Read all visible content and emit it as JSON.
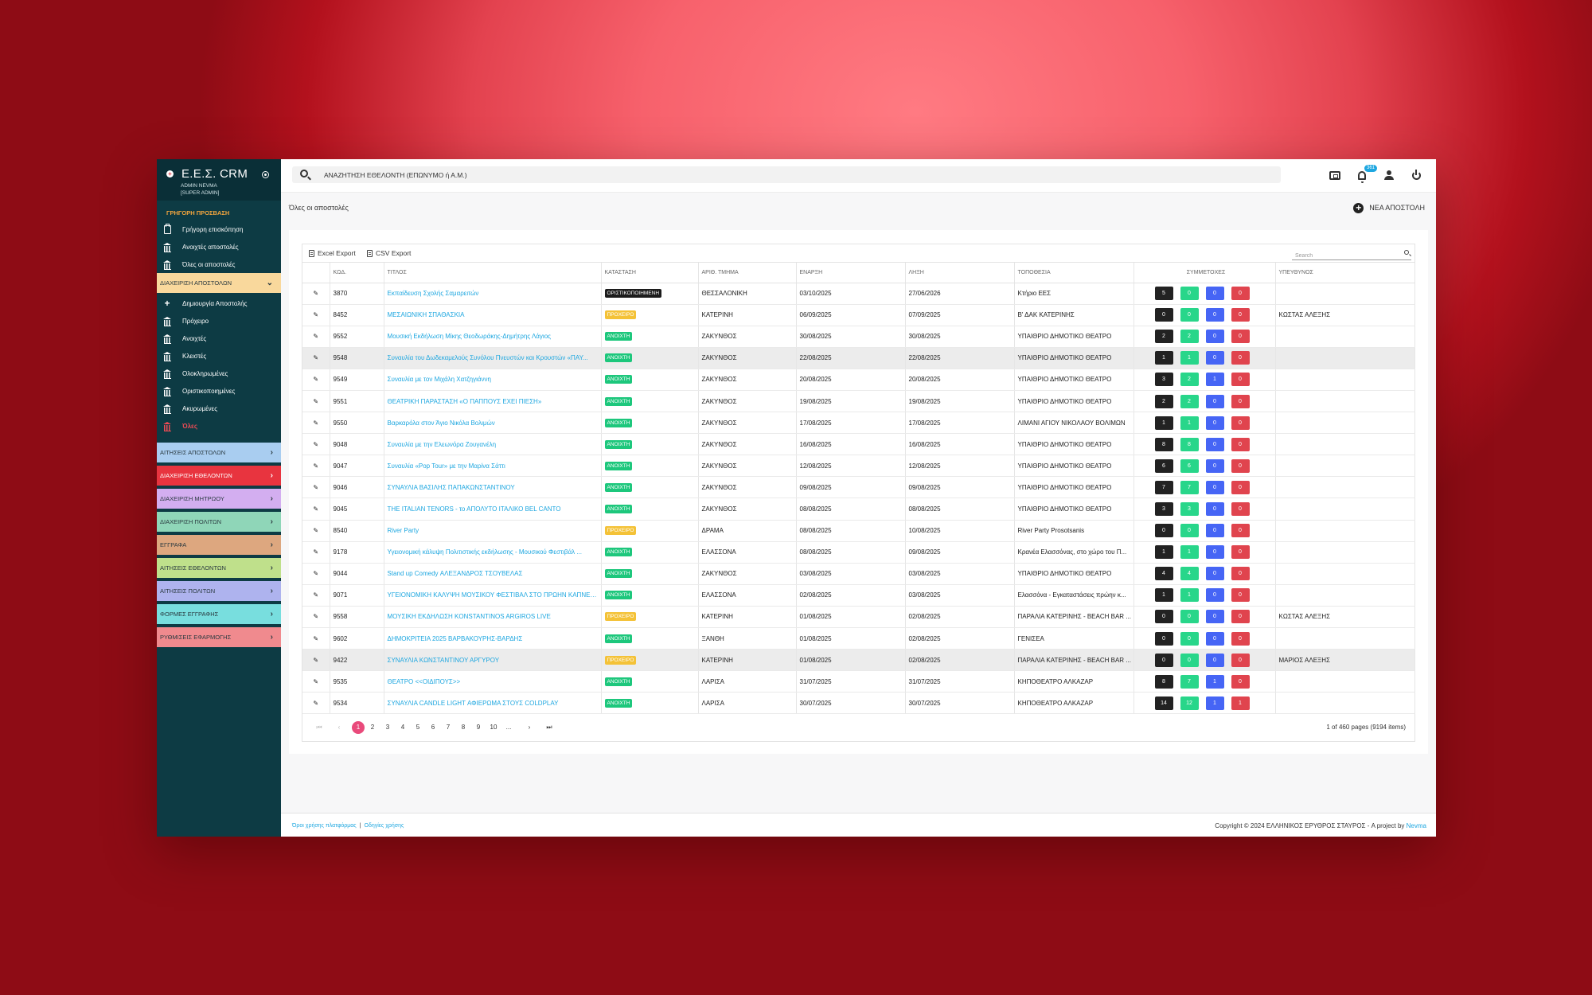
{
  "app": {
    "brand": "Ε.Ε.Σ. CRM",
    "user_name": "ADMIN NEVMA",
    "user_role": "[SUPER ADMIN]"
  },
  "sidebar": {
    "quick_access_title": "ΓΡΗΓΟΡΗ ΠΡΟΣΒΑΣΗ",
    "quick_items": [
      {
        "label": "Γρήγορη επισκόπηση",
        "icon": "clipboard-icon"
      },
      {
        "label": "Ανοιχτές αποστολές",
        "icon": "bank-icon"
      },
      {
        "label": "Όλες οι αποστολές",
        "icon": "bank-icon"
      }
    ],
    "open_section": {
      "label": "ΔΙΑΧΕΙΡΙΣΗ ΑΠΟΣΤΟΛΩΝ",
      "color": "#f9d89c"
    },
    "mission_items": [
      {
        "label": "Δημιουργία Αποστολής",
        "icon": "plus-icon"
      },
      {
        "label": "Πρόχειρο",
        "icon": "bank-icon"
      },
      {
        "label": "Ανοιχτές",
        "icon": "bank-icon"
      },
      {
        "label": "Κλειστές",
        "icon": "bank-icon"
      },
      {
        "label": "Ολοκληρωμένες",
        "icon": "bank-icon"
      },
      {
        "label": "Οριστικοποιημένες",
        "icon": "bank-icon"
      },
      {
        "label": "Ακυρωμένες",
        "icon": "bank-icon"
      },
      {
        "label": "Όλες",
        "icon": "bank-icon",
        "active": true
      }
    ],
    "sections": [
      {
        "label": "ΑΙΤΗΣΕΙΣ ΑΠΟΣΤΟΛΩΝ",
        "color": "#a9cdf0"
      },
      {
        "label": "ΔΙΑΧΕΙΡΙΣΗ ΕΘΕΛΟΝΤΩΝ",
        "color": "#e8343f"
      },
      {
        "label": "ΔΙΑΧΕΙΡΙΣΗ ΜΗΤΡΩΟΥ",
        "color": "#d3aef0"
      },
      {
        "label": "ΔΙΑΧΕΙΡΙΣΗ ΠΟΛΙΤΩΝ",
        "color": "#8fd6b8"
      },
      {
        "label": "ΕΓΓΡΑΦΑ",
        "color": "#dda77f"
      },
      {
        "label": "ΑΙΤΗΣΕΙΣ ΕΘΕΛΟΝΤΩΝ",
        "color": "#bfe08b"
      },
      {
        "label": "ΑΙΤΗΣΕΙΣ ΠΟΛΙΤΩΝ",
        "color": "#aeb3ee"
      },
      {
        "label": "ΦΟΡΜΕΣ ΕΓΓΡΑΦΗΣ",
        "color": "#78dede"
      },
      {
        "label": "ΡΥΘΜΙΣΕΙΣ ΕΦΑΡΜΟΓΗΣ",
        "color": "#f08a8e"
      }
    ]
  },
  "topbar": {
    "search_placeholder": "ΑΝΑΖΗΤΗΣΗ ΕΘΕΛΟΝΤΗ (ΕΠΩΝΥΜΟ ή Α.Μ.)",
    "notification_count": "361"
  },
  "page": {
    "breadcrumb": "Όλες οι αποστολές",
    "new_button": "ΝΕΑ ΑΠΟΣΤΟΛΗ"
  },
  "grid": {
    "excel_export": "Excel Export",
    "csv_export": "CSV Export",
    "search_placeholder": "Search",
    "columns": [
      "ΚΩΔ.",
      "ΤΙΤΛΟΣ",
      "ΚΑΤΑΣΤΑΣΗ",
      "ΑΡΙΘ. ΤΜΗΜΑ",
      "ΕΝΑΡΞΗ",
      "ΛΗΞΗ",
      "ΤΟΠΟΘΕΣΙΑ",
      "ΣΥΜΜΕΤΟΧΕΣ",
      "ΥΠΕΥΘΥΝΟΣ"
    ],
    "rows": [
      {
        "code": "3870",
        "title": "Εκπαίδευση Σχολής Σαμαρειτών",
        "status": "ΟΡΙΣΤΙΚΟΠΟΙΗΜΕΝΗ",
        "status_color": "black",
        "dept": "ΘΕΣΣΑΛΟΝΙΚΗ",
        "start": "03/10/2025",
        "end": "27/06/2026",
        "location": "Κτήριο ΕΕΣ",
        "counts": [
          "5",
          "0",
          "0",
          "0"
        ],
        "manager": ""
      },
      {
        "code": "8452",
        "title": "ΜΕΣΑΙΩΝΙΚΗ ΣΠΑΘΑΣΚΙΑ",
        "status": "ΠΡΟΧΕΙΡΟ",
        "status_color": "yellow",
        "dept": "ΚΑΤΕΡΙΝΗ",
        "start": "06/09/2025",
        "end": "07/09/2025",
        "location": "Β' ΔΑΚ ΚΑΤΕΡΙΝΗΣ",
        "counts": [
          "0",
          "0",
          "0",
          "0"
        ],
        "manager": "ΚΩΣΤΑΣ ΑΛΕΞΗΣ"
      },
      {
        "code": "9552",
        "title": "Μουσική Εκδήλωση Μίκης Θεοδωράκης-Δημήτρης Λάγιος",
        "status": "ΑΝΟΙΧΤΗ",
        "status_color": "green",
        "dept": "ΖΑΚΥΝΘΟΣ",
        "start": "30/08/2025",
        "end": "30/08/2025",
        "location": "ΥΠΑΙΘΡΙΟ ΔΗΜΟΤΙΚΟ ΘΕΑΤΡΟ",
        "counts": [
          "2",
          "2",
          "0",
          "0"
        ],
        "manager": ""
      },
      {
        "code": "9548",
        "title": "Συναυλία του Δωδεκαμελούς Συνόλου Πνευστών και Κρουστών «ΠΑΥ...",
        "status": "ΑΝΟΙΧΤΗ",
        "status_color": "green",
        "dept": "ΖΑΚΥΝΘΟΣ",
        "start": "22/08/2025",
        "end": "22/08/2025",
        "location": "ΥΠΑΙΘΡΙΟ ΔΗΜΟΤΙΚΟ ΘΕΑΤΡΟ",
        "counts": [
          "1",
          "1",
          "0",
          "0"
        ],
        "manager": "",
        "highlight": true
      },
      {
        "code": "9549",
        "title": "Συναυλία με τον Μιχάλη Χατζηγιάννη",
        "status": "ΑΝΟΙΧΤΗ",
        "status_color": "green",
        "dept": "ΖΑΚΥΝΘΟΣ",
        "start": "20/08/2025",
        "end": "20/08/2025",
        "location": "ΥΠΑΙΘΡΙΟ ΔΗΜΟΤΙΚΟ ΘΕΑΤΡΟ",
        "counts": [
          "3",
          "2",
          "1",
          "0"
        ],
        "manager": ""
      },
      {
        "code": "9551",
        "title": "ΘΕΑΤΡΙΚΗ ΠΑΡΑΣΤΑΣΗ «Ο ΠΑΠΠΟΥΣ ΕΧΕΙ ΠΙΕΣΗ»",
        "status": "ΑΝΟΙΧΤΗ",
        "status_color": "green",
        "dept": "ΖΑΚΥΝΘΟΣ",
        "start": "19/08/2025",
        "end": "19/08/2025",
        "location": "ΥΠΑΙΘΡΙΟ ΔΗΜΟΤΙΚΟ ΘΕΑΤΡΟ",
        "counts": [
          "2",
          "2",
          "0",
          "0"
        ],
        "manager": ""
      },
      {
        "code": "9550",
        "title": "Βαρκαρόλα στον Άγιο Νικόλα Βολιμών",
        "status": "ΑΝΟΙΧΤΗ",
        "status_color": "green",
        "dept": "ΖΑΚΥΝΘΟΣ",
        "start": "17/08/2025",
        "end": "17/08/2025",
        "location": "ΛΙΜΑΝΙ ΑΓΙΟΥ ΝΙΚΟΛΑΟΥ ΒΟΛΙΜΩΝ",
        "counts": [
          "1",
          "1",
          "0",
          "0"
        ],
        "manager": ""
      },
      {
        "code": "9048",
        "title": "Συναυλία με την Ελεωνόρα Ζουγανέλη",
        "status": "ΑΝΟΙΧΤΗ",
        "status_color": "green",
        "dept": "ΖΑΚΥΝΘΟΣ",
        "start": "16/08/2025",
        "end": "16/08/2025",
        "location": "ΥΠΑΙΘΡΙΟ ΔΗΜΟΤΙΚΟ ΘΕΑΤΡΟ",
        "counts": [
          "8",
          "8",
          "0",
          "0"
        ],
        "manager": ""
      },
      {
        "code": "9047",
        "title": "Συναυλία «Pop Tour» με την Μαρίνα Σάττι",
        "status": "ΑΝΟΙΧΤΗ",
        "status_color": "green",
        "dept": "ΖΑΚΥΝΘΟΣ",
        "start": "12/08/2025",
        "end": "12/08/2025",
        "location": "ΥΠΑΙΘΡΙΟ ΔΗΜΟΤΙΚΟ ΘΕΑΤΡΟ",
        "counts": [
          "6",
          "6",
          "0",
          "0"
        ],
        "manager": ""
      },
      {
        "code": "9046",
        "title": "ΣΥΝΑΥΛΙΑ ΒΑΣΙΛΗΣ ΠΑΠΑΚΩΝΣΤΑΝΤΙΝΟΥ",
        "status": "ΑΝΟΙΧΤΗ",
        "status_color": "green",
        "dept": "ΖΑΚΥΝΘΟΣ",
        "start": "09/08/2025",
        "end": "09/08/2025",
        "location": "ΥΠΑΙΘΡΙΟ ΔΗΜΟΤΙΚΟ ΘΕΑΤΡΟ",
        "counts": [
          "7",
          "7",
          "0",
          "0"
        ],
        "manager": ""
      },
      {
        "code": "9045",
        "title": "THE ITALIAN TENORS - το ΑΠΟΛΥΤΟ ΙΤΑΛΙΚΟ BEL CANTO",
        "status": "ΑΝΟΙΧΤΗ",
        "status_color": "green",
        "dept": "ΖΑΚΥΝΘΟΣ",
        "start": "08/08/2025",
        "end": "08/08/2025",
        "location": "ΥΠΑΙΘΡΙΟ ΔΗΜΟΤΙΚΟ ΘΕΑΤΡΟ",
        "counts": [
          "3",
          "3",
          "0",
          "0"
        ],
        "manager": ""
      },
      {
        "code": "8540",
        "title": "River Party",
        "status": "ΠΡΟΧΕΙΡΟ",
        "status_color": "yellow",
        "dept": "ΔΡΑΜΑ",
        "start": "08/08/2025",
        "end": "10/08/2025",
        "location": "River Party Prosotsanis",
        "counts": [
          "0",
          "0",
          "0",
          "0"
        ],
        "manager": ""
      },
      {
        "code": "9178",
        "title": "Υγειονομική κάλυψη Πολιτιστικής εκδήλωσης - Μουσικού Φεστιβάλ ...",
        "status": "ΑΝΟΙΧΤΗ",
        "status_color": "green",
        "dept": "ΕΛΑΣΣΟΝΑ",
        "start": "08/08/2025",
        "end": "09/08/2025",
        "location": "Κρανέα Ελασσόνας, στο χώρο του Π...",
        "counts": [
          "1",
          "1",
          "0",
          "0"
        ],
        "manager": ""
      },
      {
        "code": "9044",
        "title": "Stand up Comedy ΑΛΕΞΑΝΔΡΟΣ ΤΣΟΥΒΕΛΑΣ",
        "status": "ΑΝΟΙΧΤΗ",
        "status_color": "green",
        "dept": "ΖΑΚΥΝΘΟΣ",
        "start": "03/08/2025",
        "end": "03/08/2025",
        "location": "ΥΠΑΙΘΡΙΟ ΔΗΜΟΤΙΚΟ ΘΕΑΤΡΟ",
        "counts": [
          "4",
          "4",
          "0",
          "0"
        ],
        "manager": ""
      },
      {
        "code": "9071",
        "title": "ΥΓΕΙΟΝΟΜΙΚΗ ΚΑΛΥΨΗ ΜΟΥΣΙΚΟΥ ΦΕΣΤΙΒΑΛ ΣΤΟ ΠΡΩΗΝ ΚΑΠΝΕΡΓ...",
        "status": "ΑΝΟΙΧΤΗ",
        "status_color": "green",
        "dept": "ΕΛΑΣΣΟΝΑ",
        "start": "02/08/2025",
        "end": "03/08/2025",
        "location": "Ελασσόνα - Εγκαταστάσεις πρώην κ...",
        "counts": [
          "1",
          "1",
          "0",
          "0"
        ],
        "manager": ""
      },
      {
        "code": "9558",
        "title": "ΜΟΥΣΙΚΗ ΕΚΔΗΛΩΣΗ KONSTANTINOS ARGIROS LIVE",
        "status": "ΠΡΟΧΕΙΡΟ",
        "status_color": "yellow",
        "dept": "ΚΑΤΕΡΙΝΗ",
        "start": "01/08/2025",
        "end": "02/08/2025",
        "location": "ΠΑΡΑΛΙΑ ΚΑΤΕΡΙΝΗΣ - BEACH BAR ...",
        "counts": [
          "0",
          "0",
          "0",
          "0"
        ],
        "manager": "ΚΩΣΤΑΣ ΑΛΕΞΗΣ"
      },
      {
        "code": "9602",
        "title": "ΔΗΜΟΚΡΙΤΕΙΑ 2025 ΒΑΡΒΑΚΟΥΡΗΣ-ΒΑΡΔΗΣ",
        "status": "ΑΝΟΙΧΤΗ",
        "status_color": "green",
        "dept": "ΞΑΝΘΗ",
        "start": "01/08/2025",
        "end": "02/08/2025",
        "location": "ΓΕΝΙΣΕΑ",
        "counts": [
          "0",
          "0",
          "0",
          "0"
        ],
        "manager": ""
      },
      {
        "code": "9422",
        "title": "ΣΥΝΑΥΛΙΑ ΚΩΝΣΤΑΝΤΙΝΟΥ ΑΡΓΥΡΟΥ",
        "status": "ΠΡΟΧΕΙΡΟ",
        "status_color": "yellow",
        "dept": "ΚΑΤΕΡΙΝΗ",
        "start": "01/08/2025",
        "end": "02/08/2025",
        "location": "ΠΑΡΑΛΙΑ ΚΑΤΕΡΙΝΗΣ - BEACH BAR ...",
        "counts": [
          "0",
          "0",
          "0",
          "0"
        ],
        "manager": "ΜΑΡΙΟΣ ΑΛΕΞΗΣ",
        "highlight": true
      },
      {
        "code": "9535",
        "title": "ΘΕΑΤΡΟ <<ΟΙΔΙΠΟΥΣ>>",
        "status": "ΑΝΟΙΧΤΗ",
        "status_color": "green",
        "dept": "ΛΑΡΙΣΑ",
        "start": "31/07/2025",
        "end": "31/07/2025",
        "location": "ΚΗΠΟΘΕΑΤΡΟ ΑΛΚΑΖΑΡ",
        "counts": [
          "8",
          "7",
          "1",
          "0"
        ],
        "manager": ""
      },
      {
        "code": "9534",
        "title": "ΣΥΝΑΥΛΙΑ CANDLE LIGHT ΑΦΙΕΡΩΜΑ ΣΤΟΥΣ COLDPLAY",
        "status": "ΑΝΟΙΧΤΗ",
        "status_color": "green",
        "dept": "ΛΑΡΙΣΑ",
        "start": "30/07/2025",
        "end": "30/07/2025",
        "location": "ΚΗΠΟΘΕΑΤΡΟ ΑΛΚΑΖΑΡ",
        "counts": [
          "14",
          "12",
          "1",
          "1"
        ],
        "manager": ""
      }
    ]
  },
  "pager": {
    "pages": [
      "1",
      "2",
      "3",
      "4",
      "5",
      "6",
      "7",
      "8",
      "9",
      "10",
      "..."
    ],
    "current": "1",
    "info": "1 of 460 pages (9194 items)"
  },
  "footer": {
    "terms": "Όροι χρήσης πλατφόρμας",
    "separator": "|",
    "guide": "Οδηγίες χρήσης",
    "copyright": "Copyright © 2024 ΕΛΛΗΝΙΚΟΣ ΕΡΥΘΡΟΣ ΣΤΑΥΡΟΣ - A project by",
    "company": "Nevma"
  }
}
